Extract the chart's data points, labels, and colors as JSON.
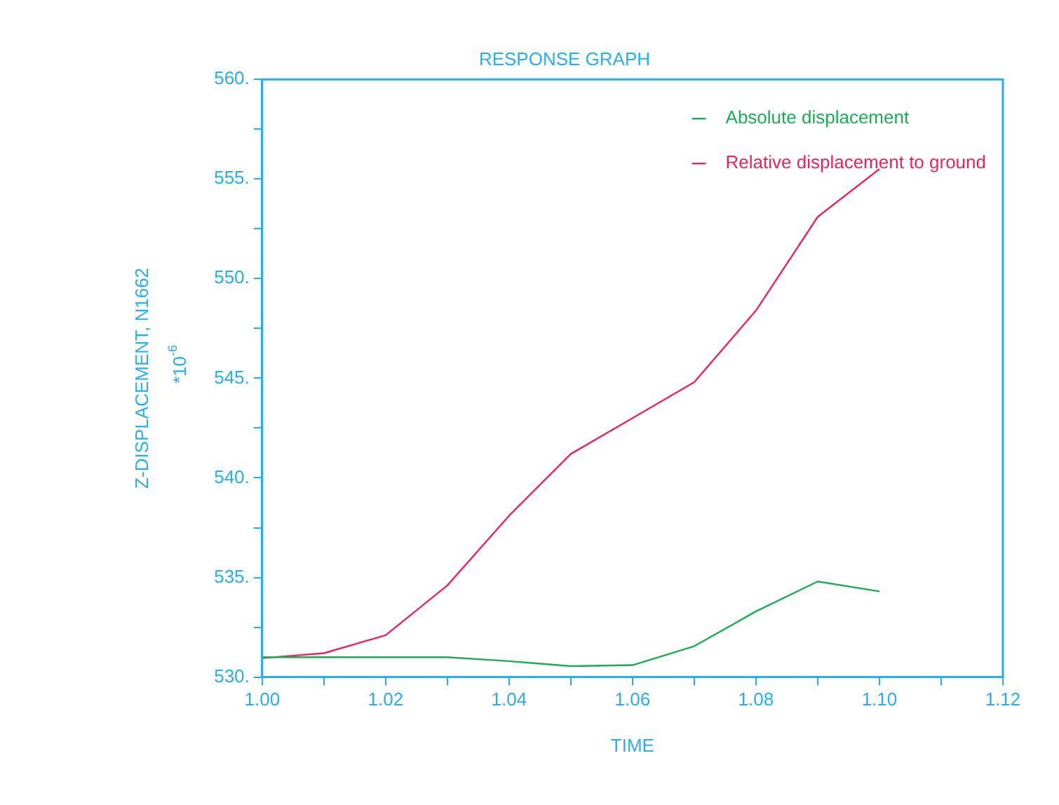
{
  "chart_data": {
    "type": "line",
    "title": "RESPONSE GRAPH",
    "xlabel": "TIME",
    "ylabel": "Z-DISPLACEMENT, N1662",
    "annotations": [
      "*10$^{-6}$"
    ],
    "x": [
      1.0,
      1.01,
      1.02,
      1.03,
      1.04,
      1.05,
      1.06,
      1.07,
      1.08,
      1.09,
      1.1
    ],
    "series": [
      {
        "name": "Absolute displacement",
        "color": "#1faa55",
        "values": [
          531.0,
          531.0,
          531.0,
          531.0,
          530.8,
          530.55,
          530.6,
          531.55,
          533.3,
          534.8,
          534.3
        ]
      },
      {
        "name": "Relative displacement to ground",
        "color": "#e8245c",
        "values": [
          530.95,
          531.2,
          532.1,
          534.6,
          538.1,
          541.2,
          543.0,
          544.8,
          548.4,
          553.1,
          555.5
        ]
      }
    ],
    "xlim": [
      1.0,
      1.12
    ],
    "xticks": [
      {
        "value": 1.0,
        "label": "1.00"
      },
      {
        "value": 1.01,
        "label": null
      },
      {
        "value": 1.02,
        "label": "1.02"
      },
      {
        "value": 1.03,
        "label": null
      },
      {
        "value": 1.04,
        "label": "1.04"
      },
      {
        "value": 1.05,
        "label": null
      },
      {
        "value": 1.06,
        "label": "1.06"
      },
      {
        "value": 1.07,
        "label": null
      },
      {
        "value": 1.08,
        "label": "1.08"
      },
      {
        "value": 1.09,
        "label": null
      },
      {
        "value": 1.1,
        "label": "1.10"
      },
      {
        "value": 1.11,
        "label": null
      },
      {
        "value": 1.12,
        "label": "1.12"
      }
    ],
    "ylim": [
      530,
      560
    ],
    "yticks": [
      {
        "value": 530,
        "label": "530."
      },
      {
        "value": 532.5,
        "label": null
      },
      {
        "value": 535,
        "label": "535."
      },
      {
        "value": 537.5,
        "label": null
      },
      {
        "value": 540,
        "label": "540."
      },
      {
        "value": 542.5,
        "label": null
      },
      {
        "value": 545,
        "label": "545."
      },
      {
        "value": 547.5,
        "label": null
      },
      {
        "value": 550,
        "label": "550."
      },
      {
        "value": 552.5,
        "label": null
      },
      {
        "value": 555,
        "label": "555."
      },
      {
        "value": 557.5,
        "label": null
      },
      {
        "value": 560,
        "label": "560."
      }
    ],
    "grid": false,
    "legend": "top right",
    "marker": "none",
    "line_style": "solid"
  }
}
